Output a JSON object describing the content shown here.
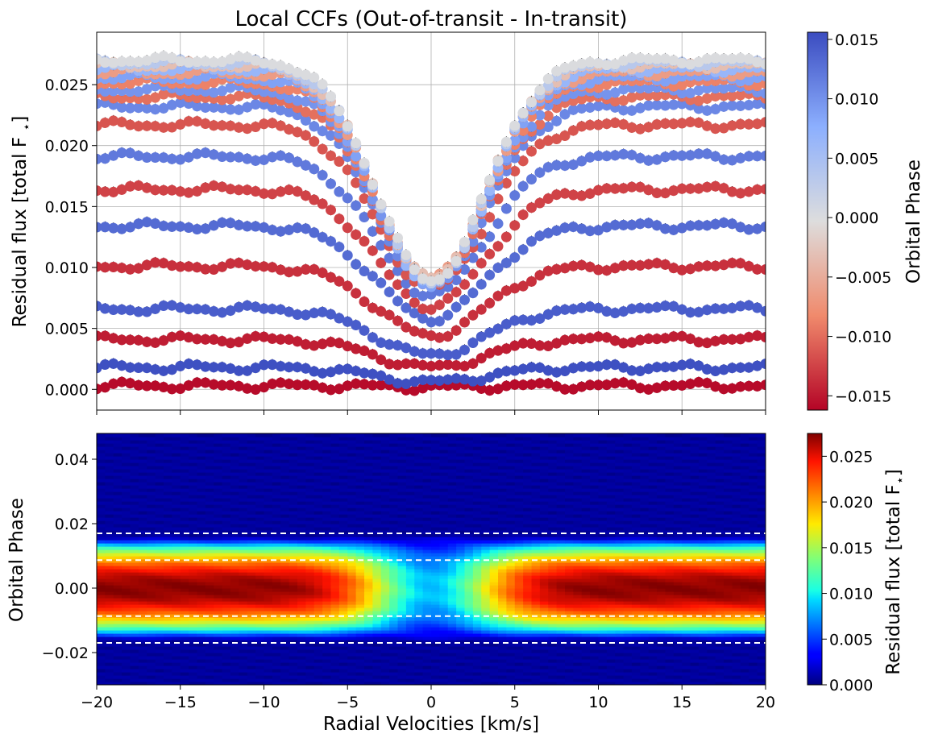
{
  "title": "Local CCFs (Out-of-transit - In-transit)",
  "top_panel": {
    "ylabel": "Residual flux [total F",
    "ylabel_sub": "⋆",
    "ylabel_end": "]",
    "yticks": [
      "0.000",
      "0.005",
      "0.010",
      "0.015",
      "0.020",
      "0.025"
    ],
    "colorbar_label": "Orbital Phase",
    "colorbar_ticks": [
      "−0.015",
      "−0.010",
      "−0.005",
      "0.000",
      "0.005",
      "0.010",
      "0.015"
    ]
  },
  "bottom_panel": {
    "ylabel": "Orbital Phase",
    "yticks": [
      "−0.02",
      "0.00",
      "0.02",
      "0.04"
    ],
    "xlabel": "Radial Velocities [km/s]",
    "xticks": [
      "−20",
      "−15",
      "−10",
      "−5",
      "0",
      "5",
      "10",
      "15",
      "20"
    ],
    "colorbar_label": "Residual flux [total F",
    "colorbar_label_sub": "⋆",
    "colorbar_label_end": "]",
    "colorbar_ticks": [
      "0.000",
      "0.005",
      "0.010",
      "0.015",
      "0.020",
      "0.025"
    ]
  },
  "chart_data": [
    {
      "type": "scatter",
      "title": "Local CCFs (Out-of-transit - In-transit)",
      "xlabel": "",
      "ylabel": "Residual flux [total F⋆]",
      "xlim": [
        -20,
        20
      ],
      "ylim": [
        -0.0017,
        0.0293
      ],
      "grid": true,
      "x_range": [
        -20,
        20
      ],
      "x_step": 0.5,
      "color_axis": {
        "label": "Orbital Phase",
        "range": [
          -0.0162,
          0.0156
        ],
        "colormap": "coolwarm"
      },
      "series": [
        {
          "phase": -0.0158,
          "continuum": 0.0003,
          "core": 0.0002
        },
        {
          "phase": 0.0153,
          "continuum": 0.0018,
          "core": 0.0006
        },
        {
          "phase": -0.0147,
          "continuum": 0.0041,
          "core": 0.0018
        },
        {
          "phase": 0.0142,
          "continuum": 0.0066,
          "core": 0.0028
        },
        {
          "phase": -0.0136,
          "continuum": 0.0101,
          "core": 0.0044
        },
        {
          "phase": 0.0131,
          "continuum": 0.0134,
          "core": 0.0058
        },
        {
          "phase": -0.0125,
          "continuum": 0.0164,
          "core": 0.0068
        },
        {
          "phase": 0.012,
          "continuum": 0.0191,
          "core": 0.0077
        },
        {
          "phase": -0.0114,
          "continuum": 0.0217,
          "core": 0.0083
        },
        {
          "phase": 0.0109,
          "continuum": 0.0232,
          "core": 0.0086
        },
        {
          "phase": -0.0098,
          "continuum": 0.024,
          "core": 0.0088
        },
        {
          "phase": 0.0098,
          "continuum": 0.0246,
          "core": 0.0087
        },
        {
          "phase": -0.0087,
          "continuum": 0.0252,
          "core": 0.0089
        },
        {
          "phase": 0.0087,
          "continuum": 0.0256,
          "core": 0.0087
        },
        {
          "phase": -0.0065,
          "continuum": 0.026,
          "core": 0.009
        },
        {
          "phase": 0.0065,
          "continuum": 0.0263,
          "core": 0.0086
        },
        {
          "phase": -0.0033,
          "continuum": 0.0266,
          "core": 0.009
        },
        {
          "phase": 0.0033,
          "continuum": 0.0268,
          "core": 0.0087
        },
        {
          "phase": 0.0,
          "continuum": 0.027,
          "core": 0.0089
        }
      ]
    },
    {
      "type": "heatmap",
      "xlabel": "Radial Velocities [km/s]",
      "ylabel": "Orbital Phase",
      "xlim": [
        -20,
        20
      ],
      "ylim": [
        -0.03,
        0.048
      ],
      "colormap": "jet",
      "value_range": [
        0.0,
        0.0275
      ],
      "colorbar_label": "Residual flux [total F⋆]",
      "in_transit_phase_range": [
        -0.0162,
        0.0156
      ],
      "reference_lines_phase": [
        -0.017,
        -0.0087,
        0.0087,
        0.017
      ]
    }
  ]
}
